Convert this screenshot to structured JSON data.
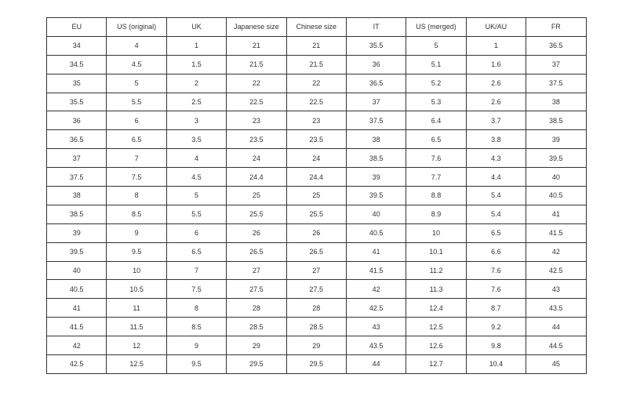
{
  "table": {
    "headers": [
      "EU",
      "US (original)",
      "UK",
      "Japanese size",
      "Chinese size",
      "IT",
      "US (merged)",
      "UK/AU",
      "FR"
    ],
    "rows": [
      [
        "34",
        "4",
        "1",
        "21",
        "21",
        "35.5",
        "5",
        "1",
        "36.5"
      ],
      [
        "34.5",
        "4.5",
        "1.5",
        "21.5",
        "21.5",
        "36",
        "5.1",
        "1.6",
        "37"
      ],
      [
        "35",
        "5",
        "2",
        "22",
        "22",
        "36.5",
        "5.2",
        "2.6",
        "37.5"
      ],
      [
        "35.5",
        "5.5",
        "2.5",
        "22.5",
        "22.5",
        "37",
        "5.3",
        "2.6",
        "38"
      ],
      [
        "36",
        "6",
        "3",
        "23",
        "23",
        "37.5",
        "6.4",
        "3.7",
        "38.5"
      ],
      [
        "36.5",
        "6.5",
        "3.5",
        "23.5",
        "23.5",
        "38",
        "6.5",
        "3.8",
        "39"
      ],
      [
        "37",
        "7",
        "4",
        "24",
        "24",
        "38.5",
        "7.6",
        "4.3",
        "39.5"
      ],
      [
        "37.5",
        "7.5",
        "4.5",
        "24.4",
        "24.4",
        "39",
        "7.7",
        "4.4",
        "40"
      ],
      [
        "38",
        "8",
        "5",
        "25",
        "25",
        "39.5",
        "8.8",
        "5.4",
        "40.5"
      ],
      [
        "38.5",
        "8.5",
        "5.5",
        "25.5",
        "25.5",
        "40",
        "8.9",
        "5.4",
        "41"
      ],
      [
        "39",
        "9",
        "6",
        "26",
        "26",
        "40.5",
        "10",
        "6.5",
        "41.5"
      ],
      [
        "39.5",
        "9.5",
        "6.5",
        "26.5",
        "26.5",
        "41",
        "10.1",
        "6.6",
        "42"
      ],
      [
        "40",
        "10",
        "7",
        "27",
        "27",
        "41.5",
        "11.2",
        "7.6",
        "42.5"
      ],
      [
        "40.5",
        "10.5",
        "7.5",
        "27.5",
        "27.5",
        "42",
        "11.3",
        "7.6",
        "43"
      ],
      [
        "41",
        "11",
        "8",
        "28",
        "28",
        "42.5",
        "12.4",
        "8.7",
        "43.5"
      ],
      [
        "41.5",
        "11.5",
        "8.5",
        "28.5",
        "28.5",
        "43",
        "12.5",
        "9.2",
        "44"
      ],
      [
        "42",
        "12",
        "9",
        "29",
        "29",
        "43.5",
        "12.6",
        "9.8",
        "44.5"
      ],
      [
        "42.5",
        "12.5",
        "9.5",
        "29.5",
        "29.5",
        "44",
        "12.7",
        "10.4",
        "45"
      ]
    ]
  }
}
